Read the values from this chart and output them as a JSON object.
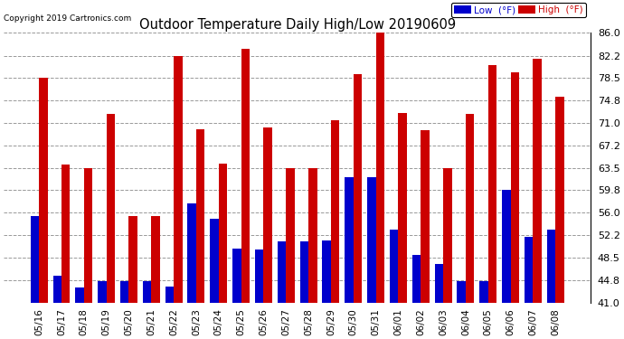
{
  "title": "Outdoor Temperature Daily High/Low 20190609",
  "copyright": "Copyright 2019 Cartronics.com",
  "categories": [
    "05/16",
    "05/17",
    "05/18",
    "05/19",
    "05/20",
    "05/21",
    "05/22",
    "05/23",
    "05/24",
    "05/25",
    "05/26",
    "05/27",
    "05/28",
    "05/29",
    "05/30",
    "05/31",
    "06/01",
    "06/02",
    "06/03",
    "06/04",
    "06/05",
    "06/06",
    "06/07",
    "06/08"
  ],
  "low": [
    55.4,
    45.5,
    43.5,
    44.6,
    44.6,
    44.6,
    43.7,
    57.6,
    55.0,
    50.0,
    49.8,
    51.2,
    51.2,
    51.4,
    62.0,
    62.0,
    53.2,
    49.0,
    47.5,
    44.6,
    44.6,
    59.8,
    52.0,
    53.2
  ],
  "high": [
    78.5,
    64.0,
    63.5,
    72.5,
    55.4,
    55.4,
    82.2,
    70.0,
    64.2,
    83.3,
    70.2,
    63.5,
    63.5,
    71.5,
    79.2,
    86.0,
    72.7,
    69.8,
    63.5,
    72.5,
    80.6,
    79.5,
    81.7,
    75.4
  ],
  "low_color": "#0000cc",
  "high_color": "#cc0000",
  "bg_color": "#ffffff",
  "grid_color": "#999999",
  "ymin": 41.0,
  "ymax": 86.0,
  "yticks": [
    41.0,
    44.8,
    48.5,
    52.2,
    56.0,
    59.8,
    63.5,
    67.2,
    71.0,
    74.8,
    78.5,
    82.2,
    86.0
  ],
  "bar_width": 0.38
}
